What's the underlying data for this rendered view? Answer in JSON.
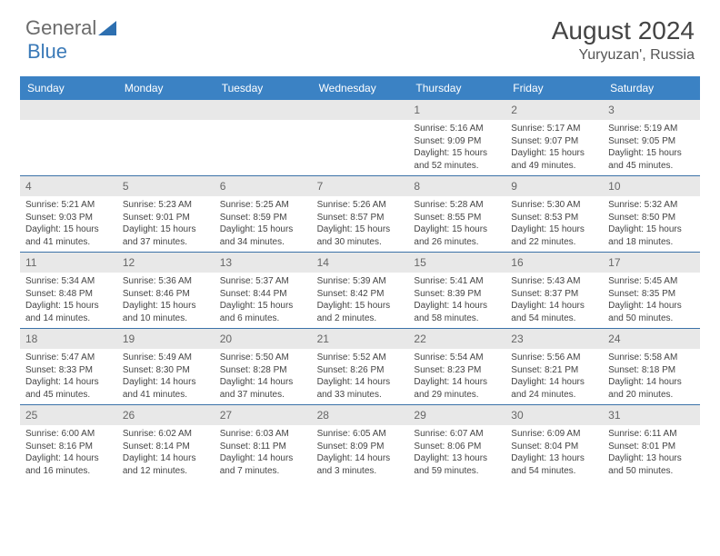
{
  "logo": {
    "text1": "General",
    "text2": "Blue"
  },
  "title": "August 2024",
  "location": "Yuryuzan', Russia",
  "colors": {
    "header_bg": "#3b82c4",
    "header_text": "#ffffff",
    "date_bar_bg": "#e8e8e8",
    "date_bar_text": "#666666",
    "body_text": "#444444",
    "week_border": "#3b72a8",
    "logo_gray": "#6b6b6b",
    "logo_blue": "#3b7ab8"
  },
  "dayNames": [
    "Sunday",
    "Monday",
    "Tuesday",
    "Wednesday",
    "Thursday",
    "Friday",
    "Saturday"
  ],
  "weeks": [
    [
      {
        "empty": true
      },
      {
        "empty": true
      },
      {
        "empty": true
      },
      {
        "empty": true
      },
      {
        "date": "1",
        "sunrise": "Sunrise: 5:16 AM",
        "sunset": "Sunset: 9:09 PM",
        "daylight": "Daylight: 15 hours and 52 minutes."
      },
      {
        "date": "2",
        "sunrise": "Sunrise: 5:17 AM",
        "sunset": "Sunset: 9:07 PM",
        "daylight": "Daylight: 15 hours and 49 minutes."
      },
      {
        "date": "3",
        "sunrise": "Sunrise: 5:19 AM",
        "sunset": "Sunset: 9:05 PM",
        "daylight": "Daylight: 15 hours and 45 minutes."
      }
    ],
    [
      {
        "date": "4",
        "sunrise": "Sunrise: 5:21 AM",
        "sunset": "Sunset: 9:03 PM",
        "daylight": "Daylight: 15 hours and 41 minutes."
      },
      {
        "date": "5",
        "sunrise": "Sunrise: 5:23 AM",
        "sunset": "Sunset: 9:01 PM",
        "daylight": "Daylight: 15 hours and 37 minutes."
      },
      {
        "date": "6",
        "sunrise": "Sunrise: 5:25 AM",
        "sunset": "Sunset: 8:59 PM",
        "daylight": "Daylight: 15 hours and 34 minutes."
      },
      {
        "date": "7",
        "sunrise": "Sunrise: 5:26 AM",
        "sunset": "Sunset: 8:57 PM",
        "daylight": "Daylight: 15 hours and 30 minutes."
      },
      {
        "date": "8",
        "sunrise": "Sunrise: 5:28 AM",
        "sunset": "Sunset: 8:55 PM",
        "daylight": "Daylight: 15 hours and 26 minutes."
      },
      {
        "date": "9",
        "sunrise": "Sunrise: 5:30 AM",
        "sunset": "Sunset: 8:53 PM",
        "daylight": "Daylight: 15 hours and 22 minutes."
      },
      {
        "date": "10",
        "sunrise": "Sunrise: 5:32 AM",
        "sunset": "Sunset: 8:50 PM",
        "daylight": "Daylight: 15 hours and 18 minutes."
      }
    ],
    [
      {
        "date": "11",
        "sunrise": "Sunrise: 5:34 AM",
        "sunset": "Sunset: 8:48 PM",
        "daylight": "Daylight: 15 hours and 14 minutes."
      },
      {
        "date": "12",
        "sunrise": "Sunrise: 5:36 AM",
        "sunset": "Sunset: 8:46 PM",
        "daylight": "Daylight: 15 hours and 10 minutes."
      },
      {
        "date": "13",
        "sunrise": "Sunrise: 5:37 AM",
        "sunset": "Sunset: 8:44 PM",
        "daylight": "Daylight: 15 hours and 6 minutes."
      },
      {
        "date": "14",
        "sunrise": "Sunrise: 5:39 AM",
        "sunset": "Sunset: 8:42 PM",
        "daylight": "Daylight: 15 hours and 2 minutes."
      },
      {
        "date": "15",
        "sunrise": "Sunrise: 5:41 AM",
        "sunset": "Sunset: 8:39 PM",
        "daylight": "Daylight: 14 hours and 58 minutes."
      },
      {
        "date": "16",
        "sunrise": "Sunrise: 5:43 AM",
        "sunset": "Sunset: 8:37 PM",
        "daylight": "Daylight: 14 hours and 54 minutes."
      },
      {
        "date": "17",
        "sunrise": "Sunrise: 5:45 AM",
        "sunset": "Sunset: 8:35 PM",
        "daylight": "Daylight: 14 hours and 50 minutes."
      }
    ],
    [
      {
        "date": "18",
        "sunrise": "Sunrise: 5:47 AM",
        "sunset": "Sunset: 8:33 PM",
        "daylight": "Daylight: 14 hours and 45 minutes."
      },
      {
        "date": "19",
        "sunrise": "Sunrise: 5:49 AM",
        "sunset": "Sunset: 8:30 PM",
        "daylight": "Daylight: 14 hours and 41 minutes."
      },
      {
        "date": "20",
        "sunrise": "Sunrise: 5:50 AM",
        "sunset": "Sunset: 8:28 PM",
        "daylight": "Daylight: 14 hours and 37 minutes."
      },
      {
        "date": "21",
        "sunrise": "Sunrise: 5:52 AM",
        "sunset": "Sunset: 8:26 PM",
        "daylight": "Daylight: 14 hours and 33 minutes."
      },
      {
        "date": "22",
        "sunrise": "Sunrise: 5:54 AM",
        "sunset": "Sunset: 8:23 PM",
        "daylight": "Daylight: 14 hours and 29 minutes."
      },
      {
        "date": "23",
        "sunrise": "Sunrise: 5:56 AM",
        "sunset": "Sunset: 8:21 PM",
        "daylight": "Daylight: 14 hours and 24 minutes."
      },
      {
        "date": "24",
        "sunrise": "Sunrise: 5:58 AM",
        "sunset": "Sunset: 8:18 PM",
        "daylight": "Daylight: 14 hours and 20 minutes."
      }
    ],
    [
      {
        "date": "25",
        "sunrise": "Sunrise: 6:00 AM",
        "sunset": "Sunset: 8:16 PM",
        "daylight": "Daylight: 14 hours and 16 minutes."
      },
      {
        "date": "26",
        "sunrise": "Sunrise: 6:02 AM",
        "sunset": "Sunset: 8:14 PM",
        "daylight": "Daylight: 14 hours and 12 minutes."
      },
      {
        "date": "27",
        "sunrise": "Sunrise: 6:03 AM",
        "sunset": "Sunset: 8:11 PM",
        "daylight": "Daylight: 14 hours and 7 minutes."
      },
      {
        "date": "28",
        "sunrise": "Sunrise: 6:05 AM",
        "sunset": "Sunset: 8:09 PM",
        "daylight": "Daylight: 14 hours and 3 minutes."
      },
      {
        "date": "29",
        "sunrise": "Sunrise: 6:07 AM",
        "sunset": "Sunset: 8:06 PM",
        "daylight": "Daylight: 13 hours and 59 minutes."
      },
      {
        "date": "30",
        "sunrise": "Sunrise: 6:09 AM",
        "sunset": "Sunset: 8:04 PM",
        "daylight": "Daylight: 13 hours and 54 minutes."
      },
      {
        "date": "31",
        "sunrise": "Sunrise: 6:11 AM",
        "sunset": "Sunset: 8:01 PM",
        "daylight": "Daylight: 13 hours and 50 minutes."
      }
    ]
  ]
}
